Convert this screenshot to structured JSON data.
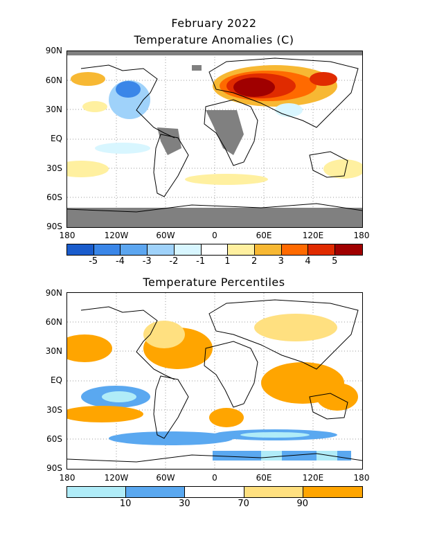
{
  "header": {
    "title": "February 2022",
    "subtitle": "Temperature Anomalies (C)"
  },
  "map2": {
    "title": "Temperature Percentiles"
  },
  "axes": {
    "lat_labels": [
      "90N",
      "60N",
      "30N",
      "EQ",
      "30S",
      "60S",
      "90S"
    ],
    "lon_labels": [
      "180",
      "120W",
      "60W",
      "0",
      "60E",
      "120E",
      "180"
    ]
  },
  "anomaly_scale": {
    "colors": [
      "#1a5ccc",
      "#3a86e8",
      "#5ca6f0",
      "#9fd2fa",
      "#d8f6ff",
      "#ffffff",
      "#fff0a0",
      "#f7b833",
      "#ff6a00",
      "#e02b00",
      "#a00000"
    ],
    "labels": [
      "-5",
      "-4",
      "-3",
      "-2",
      "-1",
      "1",
      "2",
      "3",
      "4",
      "5"
    ]
  },
  "percentile_scale": {
    "colors": [
      "#b0ecf8",
      "#5aa8f0",
      "#ffffff",
      "#ffe080",
      "#ffa500"
    ],
    "labels": [
      "10",
      "30",
      "70",
      "90"
    ]
  }
}
